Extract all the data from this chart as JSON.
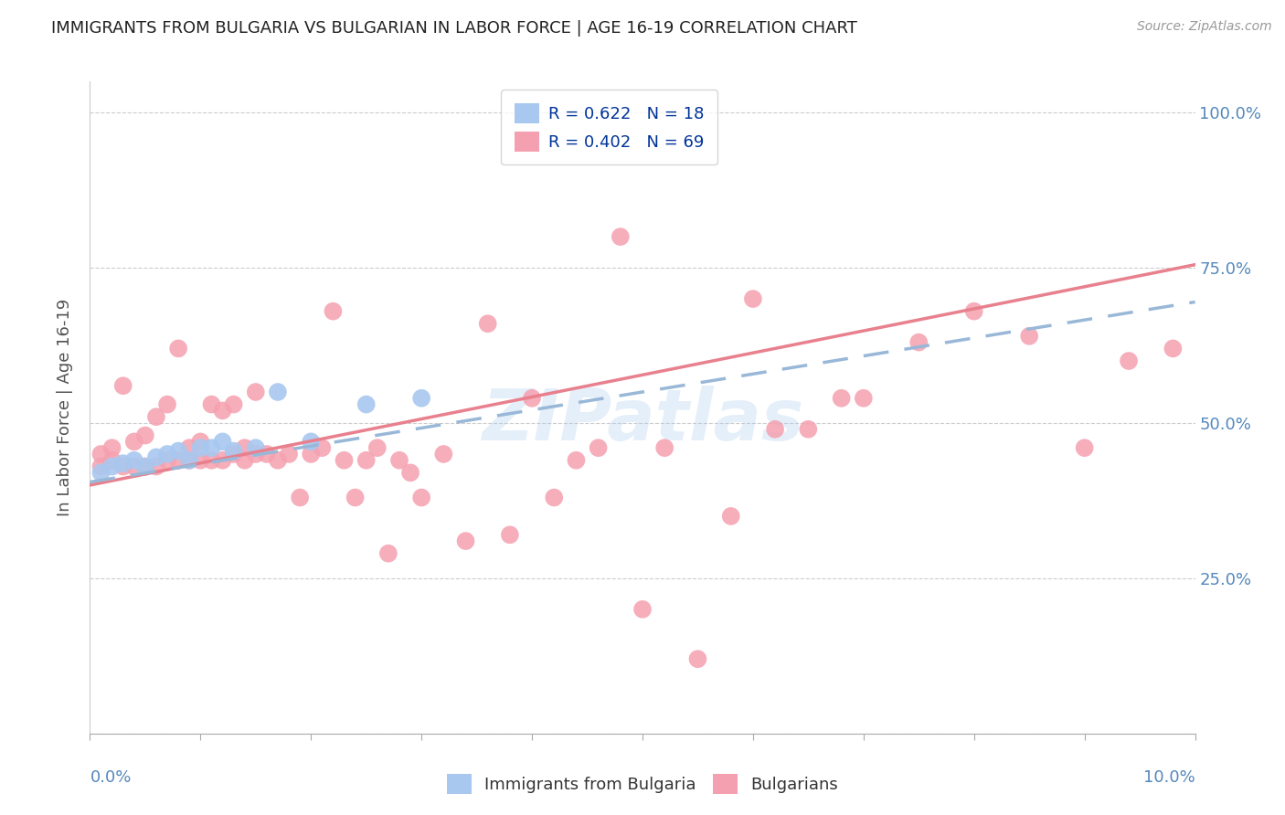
{
  "title": "IMMIGRANTS FROM BULGARIA VS BULGARIAN IN LABOR FORCE | AGE 16-19 CORRELATION CHART",
  "source": "Source: ZipAtlas.com",
  "ylabel": "In Labor Force | Age 16-19",
  "legend1_label": "R = 0.622   N = 18",
  "legend2_label": "R = 0.402   N = 69",
  "watermark": "ZIPatlas",
  "color_blue": "#a8c8f0",
  "color_pink": "#f5a0b0",
  "color_blue_line": "#99b8d8",
  "color_pink_line": "#e8808e",
  "color_axis_labels": "#5588bb",
  "color_legend_text": "#003399",
  "blue_scatter_x": [
    0.001,
    0.002,
    0.003,
    0.004,
    0.005,
    0.006,
    0.007,
    0.008,
    0.009,
    0.01,
    0.011,
    0.012,
    0.013,
    0.015,
    0.017,
    0.02,
    0.025,
    0.03
  ],
  "blue_scatter_y": [
    0.42,
    0.43,
    0.435,
    0.44,
    0.43,
    0.445,
    0.45,
    0.455,
    0.44,
    0.46,
    0.46,
    0.47,
    0.455,
    0.46,
    0.55,
    0.47,
    0.53,
    0.54
  ],
  "pink_scatter_x": [
    0.001,
    0.001,
    0.002,
    0.002,
    0.003,
    0.003,
    0.004,
    0.004,
    0.005,
    0.005,
    0.006,
    0.006,
    0.007,
    0.007,
    0.008,
    0.008,
    0.009,
    0.009,
    0.01,
    0.01,
    0.011,
    0.011,
    0.012,
    0.012,
    0.013,
    0.013,
    0.014,
    0.014,
    0.015,
    0.015,
    0.016,
    0.017,
    0.018,
    0.019,
    0.02,
    0.021,
    0.022,
    0.023,
    0.024,
    0.025,
    0.026,
    0.027,
    0.028,
    0.029,
    0.03,
    0.032,
    0.034,
    0.036,
    0.038,
    0.04,
    0.042,
    0.044,
    0.046,
    0.048,
    0.05,
    0.052,
    0.055,
    0.058,
    0.06,
    0.062,
    0.065,
    0.068,
    0.07,
    0.075,
    0.08,
    0.085,
    0.09,
    0.094,
    0.098
  ],
  "pink_scatter_y": [
    0.43,
    0.45,
    0.44,
    0.46,
    0.43,
    0.56,
    0.43,
    0.47,
    0.43,
    0.48,
    0.43,
    0.51,
    0.44,
    0.53,
    0.44,
    0.62,
    0.44,
    0.46,
    0.44,
    0.47,
    0.44,
    0.53,
    0.44,
    0.52,
    0.45,
    0.53,
    0.44,
    0.46,
    0.45,
    0.55,
    0.45,
    0.44,
    0.45,
    0.38,
    0.45,
    0.46,
    0.68,
    0.44,
    0.38,
    0.44,
    0.46,
    0.29,
    0.44,
    0.42,
    0.38,
    0.45,
    0.31,
    0.66,
    0.32,
    0.54,
    0.38,
    0.44,
    0.46,
    0.8,
    0.2,
    0.46,
    0.12,
    0.35,
    0.7,
    0.49,
    0.49,
    0.54,
    0.54,
    0.63,
    0.68,
    0.64,
    0.46,
    0.6,
    0.62
  ],
  "xlim": [
    0,
    0.1
  ],
  "ylim": [
    0,
    1.05
  ],
  "blue_line_x": [
    0.0,
    0.1
  ],
  "blue_line_y": [
    0.405,
    0.695
  ],
  "pink_line_x": [
    0.0,
    0.1
  ],
  "pink_line_y": [
    0.4,
    0.755
  ],
  "yticks": [
    0.0,
    0.25,
    0.5,
    0.75,
    1.0
  ],
  "ytick_labels": [
    "",
    "25.0%",
    "50.0%",
    "75.0%",
    "100.0%"
  ]
}
